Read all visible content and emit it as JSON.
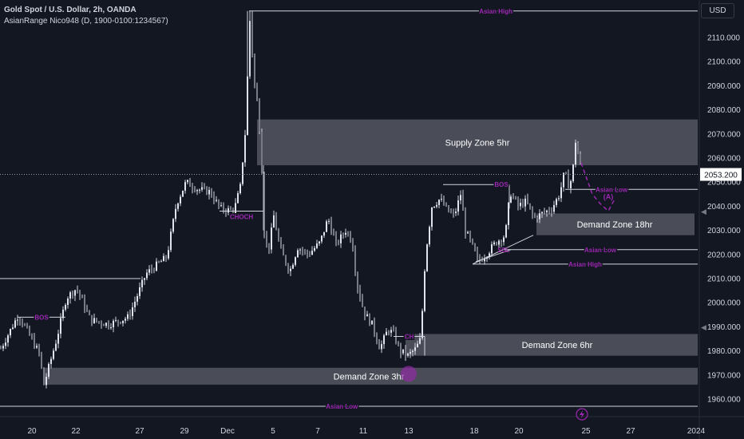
{
  "header": {
    "title": "Gold Spot / U.S. Dollar, 2h, OANDA",
    "indicator": "AsianRange Nico948 (D, 1900-0100:1234567)"
  },
  "currency_button": "USD",
  "colors": {
    "background": "#131722",
    "grid_text": "#d1d4dc",
    "candle": "#d1d4dc",
    "zone_fill": "#5d606b",
    "annotation_purple": "#9c27b0",
    "line": "#d1d4dc"
  },
  "chart_data": {
    "type": "candlestick",
    "symbol": "XAUUSD",
    "timeframe": "2h",
    "y_axis": {
      "ticks": [
        2110,
        2100,
        2090,
        2080,
        2070,
        2060,
        2050,
        2040,
        2030,
        2020,
        2010,
        2000,
        1990,
        1980,
        1970,
        1960
      ],
      "tick_labels": [
        "2110.000",
        "2100.000",
        "2090.000",
        "2080.000",
        "2070.000",
        "2060.000",
        "2050.000",
        "2040.000",
        "2030.000",
        "2020.000",
        "2010.000",
        "2000.000",
        "1990.000",
        "1980.000",
        "1970.000",
        "1960.000"
      ],
      "range": [
        1953,
        2124
      ]
    },
    "x_axis": {
      "tick_labels": [
        "20",
        "22",
        "27",
        "29",
        "Dec",
        "5",
        "7",
        "11",
        "13",
        "18",
        "20",
        "25",
        "27",
        "2024"
      ]
    },
    "current_price": 2053.2,
    "current_price_label": "2053.200",
    "path": [
      [
        0,
        1981
      ],
      [
        22,
        1995
      ],
      [
        48,
        1979
      ],
      [
        54,
        1966
      ],
      [
        70,
        1985
      ],
      [
        82,
        2002
      ],
      [
        95,
        2006
      ],
      [
        112,
        1993
      ],
      [
        135,
        1991
      ],
      [
        160,
        1994
      ],
      [
        182,
        2012
      ],
      [
        208,
        2019
      ],
      [
        220,
        2041
      ],
      [
        232,
        2050
      ],
      [
        247,
        2047
      ],
      [
        262,
        2046
      ],
      [
        275,
        2039
      ],
      [
        292,
        2038
      ],
      [
        300,
        2048
      ],
      [
        306,
        2070
      ],
      [
        312,
        2117
      ],
      [
        318,
        2090
      ],
      [
        322,
        2081
      ],
      [
        326,
        2064
      ],
      [
        330,
        2029
      ],
      [
        335,
        2021
      ],
      [
        342,
        2036
      ],
      [
        350,
        2022
      ],
      [
        362,
        2013
      ],
      [
        372,
        2023
      ],
      [
        385,
        2020
      ],
      [
        400,
        2025
      ],
      [
        410,
        2035
      ],
      [
        420,
        2024
      ],
      [
        432,
        2030
      ],
      [
        440,
        2026
      ],
      [
        446,
        2008
      ],
      [
        455,
        1996
      ],
      [
        465,
        1991
      ],
      [
        475,
        1981
      ],
      [
        485,
        1989
      ],
      [
        492,
        1987
      ],
      [
        500,
        1980
      ],
      [
        510,
        1978
      ],
      [
        520,
        1981
      ],
      [
        526,
        1985
      ],
      [
        532,
        2020
      ],
      [
        540,
        2040
      ],
      [
        550,
        2043
      ],
      [
        560,
        2038
      ],
      [
        568,
        2036
      ],
      [
        576,
        2045
      ],
      [
        582,
        2030
      ],
      [
        590,
        2024
      ],
      [
        598,
        2017
      ],
      [
        608,
        2020
      ],
      [
        620,
        2025
      ],
      [
        632,
        2028
      ],
      [
        638,
        2046
      ],
      [
        648,
        2040
      ],
      [
        658,
        2042
      ],
      [
        668,
        2035
      ],
      [
        678,
        2037
      ],
      [
        690,
        2039
      ],
      [
        700,
        2045
      ],
      [
        706,
        2054
      ],
      [
        712,
        2048
      ],
      [
        716,
        2053
      ],
      [
        720,
        2067
      ],
      [
        724,
        2060
      ],
      [
        728,
        2054
      ]
    ],
    "zones": [
      {
        "label": "Supply Zone 5hr",
        "x_start": 322,
        "x_end": 874,
        "top": 2076,
        "bottom": 2057
      },
      {
        "label": "Demand Zone 18hr",
        "x_start": 672,
        "x_end": 870,
        "top": 2037,
        "bottom": 2028
      },
      {
        "label": "Demand Zone 6hr",
        "x_start": 508,
        "x_end": 874,
        "top": 1987,
        "bottom": 1978
      },
      {
        "label": "Demand Zone 3hr",
        "x_start": 54,
        "x_end": 874,
        "top": 1973,
        "bottom": 1966
      }
    ],
    "levels": [
      {
        "label": "Asian High",
        "price": 2121,
        "x_start": 312,
        "x_end": 874,
        "label_pos": 0.55
      },
      {
        "label": "Asian Low",
        "price": 2047,
        "x_start": 708,
        "x_end": 874,
        "label_pos": 0.35
      },
      {
        "label": "Asian Low",
        "price": 2022,
        "x_start": 630,
        "x_end": 874,
        "label_pos": 0.5
      },
      {
        "label": "Asian High",
        "price": 2016,
        "x_start": 592,
        "x_end": 874,
        "label_pos": 0.5
      },
      {
        "label": "Asian Low",
        "price": 1957,
        "x_start": 0,
        "x_end": 874,
        "label_pos": 0.49
      }
    ],
    "structure_lines": [
      {
        "label": "BOS",
        "price": 1994,
        "x_start": 22,
        "x_end": 82,
        "label_pos": 0.5
      },
      {
        "label": "CHOCH",
        "price": 2038,
        "x_start": 275,
        "x_end": 330,
        "label_pos": 0.5,
        "label_below": true
      },
      {
        "label": "CH",
        "price": 1986,
        "x_start": 493,
        "x_end": 532,
        "label_pos": 0.5,
        "vertical_drop_to": 1978
      },
      {
        "label": "BOS",
        "price": 2049,
        "x_start": 555,
        "x_end": 638,
        "label_pos": 0.88,
        "vertical_drop_to": 2039
      },
      {
        "label": "",
        "price": 2010,
        "x_start": 0,
        "x_end": 176
      }
    ],
    "ssl_label": "SSL",
    "ssl_anchor": [
      631,
      2022
    ],
    "projection": {
      "label": "(A)",
      "points": [
        [
          728,
          2058
        ],
        [
          742,
          2045
        ],
        [
          752,
          2041
        ],
        [
          762,
          2038
        ],
        [
          770,
          2043
        ]
      ]
    },
    "vertical_line_from_zone": {
      "x": 330,
      "top": 2057,
      "bottom": 2030
    }
  }
}
